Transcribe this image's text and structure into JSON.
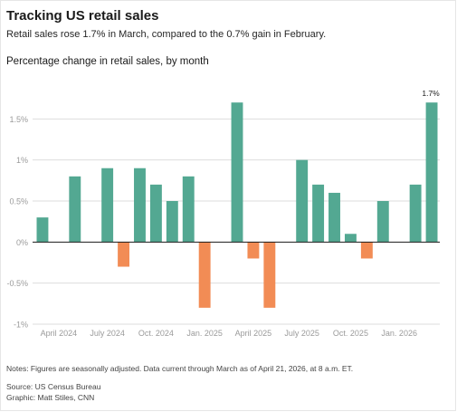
{
  "header": {
    "title": "Tracking US retail sales",
    "subtitle": "Retail sales rose 1.7% in March, compared to the 0.7% gain in February."
  },
  "footer": {
    "notes": "Notes: Figures are seasonally adjusted. Data current through March as of April 21, 2026, at 8 a.m. ET.",
    "source": "Source: US Census Bureau",
    "credit": "Graphic: Matt Stiles, CNN"
  },
  "colors": {
    "positive": "#53a892",
    "negative": "#f28c55",
    "zero_line": "#1a1a1a",
    "grid": "#dddddd",
    "tick_text": "#9a9a9a"
  },
  "chart_data": {
    "type": "bar",
    "title": "Percentage change in retail sales, by month",
    "x": [
      "2024-03",
      "2024-04",
      "2024-05",
      "2024-06",
      "2024-07",
      "2024-08",
      "2024-09",
      "2024-10",
      "2024-11",
      "2024-12",
      "2025-01",
      "2025-02",
      "2025-03",
      "2025-04",
      "2025-05",
      "2025-06",
      "2025-07",
      "2025-08",
      "2025-09",
      "2025-10",
      "2025-11",
      "2025-12",
      "2026-01",
      "2026-02",
      "2026-03"
    ],
    "values": [
      0.3,
      null,
      0.8,
      null,
      0.9,
      -0.3,
      0.9,
      0.7,
      0.5,
      0.8,
      -0.8,
      null,
      1.7,
      -0.2,
      -0.8,
      null,
      1.0,
      0.7,
      0.6,
      0.1,
      -0.2,
      0.5,
      null,
      0.7,
      1.7
    ],
    "ylim": [
      -1,
      2
    ],
    "yticks": [
      {
        "value": 1.5,
        "label": "1.5%"
      },
      {
        "value": 1,
        "label": "1%"
      },
      {
        "value": 0.5,
        "label": "0.5%"
      },
      {
        "value": 0,
        "label": "0%"
      },
      {
        "value": -0.5,
        "label": "-0.5%"
      },
      {
        "value": -1,
        "label": "-1%"
      }
    ],
    "xticks": [
      {
        "x": "2024-04",
        "label": "April 2024"
      },
      {
        "x": "2024-07",
        "label": "July 2024"
      },
      {
        "x": "2024-10",
        "label": "Oct. 2024"
      },
      {
        "x": "2025-01",
        "label": "Jan. 2025"
      },
      {
        "x": "2025-04",
        "label": "April 2025"
      },
      {
        "x": "2025-07",
        "label": "July 2025"
      },
      {
        "x": "2025-10",
        "label": "Oct. 2025"
      },
      {
        "x": "2026-01",
        "label": "Jan. 2026"
      }
    ],
    "annotations": [
      {
        "x": "2026-03",
        "text": "1.7%"
      }
    ],
    "grid": true,
    "legend": "none"
  }
}
